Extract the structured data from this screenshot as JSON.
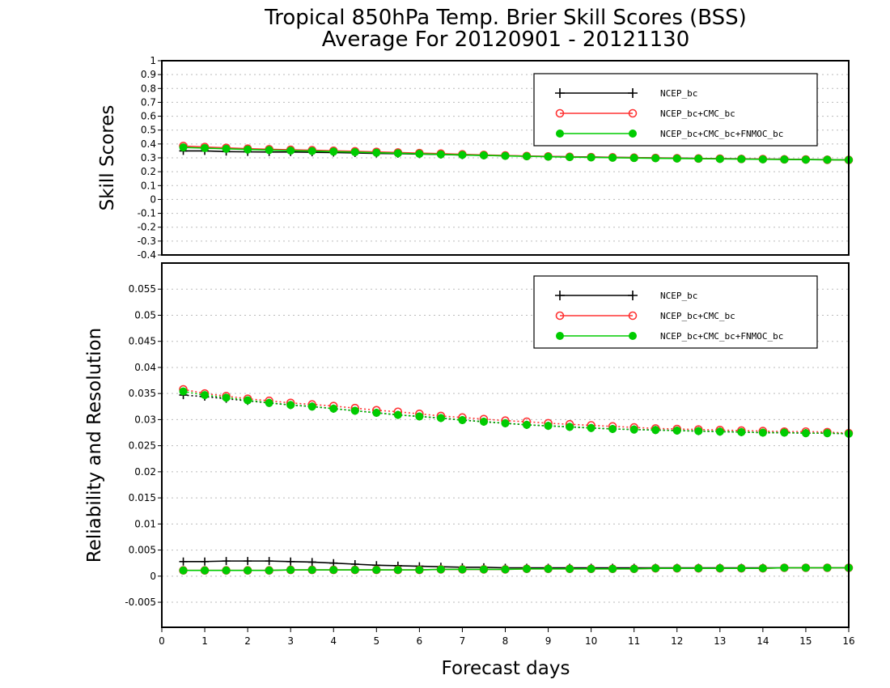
{
  "chart": {
    "title_line1": "Tropical 850hPa Temp. Brier Skill Scores (BSS)",
    "title_line2": "Average For 20120901 - 20121130",
    "xlabel": "Forecast days"
  },
  "chart_data": [
    {
      "type": "line",
      "panel": "top",
      "ylabel": "Skill Scores",
      "xlim": [
        0,
        16
      ],
      "ylim": [
        -0.4,
        1
      ],
      "yticks": [
        "1",
        "0.9",
        "0.8",
        "0.7",
        "0.6",
        "0.5",
        "0.4",
        "0.3",
        "0.2",
        "0.1",
        "0",
        "-0.1",
        "-0.2",
        "-0.3",
        "-0.4"
      ],
      "ytick_values": [
        1,
        0.9,
        0.8,
        0.7,
        0.6,
        0.5,
        0.4,
        0.3,
        0.2,
        0.1,
        0,
        -0.1,
        -0.2,
        -0.3,
        -0.4
      ],
      "grid": true,
      "legend_position": "top-right",
      "x": [
        0.5,
        1,
        1.5,
        2,
        2.5,
        3,
        3.5,
        4,
        4.5,
        5,
        5.5,
        6,
        6.5,
        7,
        7.5,
        8,
        8.5,
        9,
        9.5,
        10,
        10.5,
        11,
        11.5,
        12,
        12.5,
        13,
        13.5,
        14,
        14.5,
        15,
        15.5,
        16
      ],
      "series": [
        {
          "name": "NCEP_bc",
          "color": "#000000",
          "marker": "plus",
          "values": [
            0.35,
            0.35,
            0.345,
            0.343,
            0.342,
            0.342,
            0.34,
            0.338,
            0.335,
            0.332,
            0.33,
            0.327,
            0.324,
            0.32,
            0.318,
            0.315,
            0.312,
            0.31,
            0.308,
            0.306,
            0.304,
            0.302,
            0.3,
            0.298,
            0.296,
            0.294,
            0.293,
            0.291,
            0.29,
            0.288,
            0.287,
            0.285
          ]
        },
        {
          "name": "NCEP_bc+CMC_bc",
          "color": "#ff3333",
          "marker": "circle-open",
          "values": [
            0.385,
            0.378,
            0.372,
            0.366,
            0.362,
            0.358,
            0.355,
            0.351,
            0.347,
            0.343,
            0.338,
            0.334,
            0.33,
            0.325,
            0.321,
            0.317,
            0.313,
            0.31,
            0.307,
            0.305,
            0.303,
            0.301,
            0.299,
            0.297,
            0.295,
            0.294,
            0.292,
            0.291,
            0.289,
            0.288,
            0.286,
            0.285
          ]
        },
        {
          "name": "NCEP_bc+CMC_bc+FNMOC_bc",
          "color": "#00cc00",
          "marker": "circle-filled",
          "values": [
            0.375,
            0.37,
            0.365,
            0.36,
            0.356,
            0.352,
            0.349,
            0.345,
            0.341,
            0.337,
            0.333,
            0.329,
            0.325,
            0.321,
            0.318,
            0.314,
            0.311,
            0.308,
            0.305,
            0.303,
            0.301,
            0.299,
            0.297,
            0.295,
            0.294,
            0.292,
            0.291,
            0.289,
            0.288,
            0.287,
            0.286,
            0.285
          ]
        }
      ]
    },
    {
      "type": "line",
      "panel": "bottom",
      "ylabel": "Reliability and Resolution",
      "xlim": [
        0,
        16
      ],
      "ylim": [
        -0.0098,
        0.06
      ],
      "yticks": [
        "0.055",
        "0.05",
        "0.045",
        "0.04",
        "0.035",
        "0.03",
        "0.025",
        "0.02",
        "0.015",
        "0.01",
        "0.005",
        "0",
        "-0.005"
      ],
      "ytick_values": [
        0.055,
        0.05,
        0.045,
        0.04,
        0.035,
        0.03,
        0.025,
        0.02,
        0.015,
        0.01,
        0.005,
        0,
        -0.005
      ],
      "xticks": [
        "0",
        "1",
        "2",
        "3",
        "4",
        "5",
        "6",
        "7",
        "8",
        "9",
        "10",
        "11",
        "12",
        "13",
        "14",
        "15",
        "16"
      ],
      "grid": true,
      "legend_position": "top-right",
      "x": [
        0.5,
        1,
        1.5,
        2,
        2.5,
        3,
        3.5,
        4,
        4.5,
        5,
        5.5,
        6,
        6.5,
        7,
        7.5,
        8,
        8.5,
        9,
        9.5,
        10,
        10.5,
        11,
        11.5,
        12,
        12.5,
        13,
        13.5,
        14,
        14.5,
        15,
        15.5,
        16
      ],
      "series": [
        {
          "name": "NCEP_bc",
          "color": "#000000",
          "marker": "plus",
          "linestyle": "solid",
          "metric": "reliability",
          "values": [
            0.0028,
            0.0028,
            0.0029,
            0.0029,
            0.0029,
            0.0028,
            0.0027,
            0.0025,
            0.0023,
            0.0021,
            0.002,
            0.0019,
            0.0018,
            0.0017,
            0.0017,
            0.0016,
            0.0016,
            0.0016,
            0.0016,
            0.0016,
            0.0016,
            0.0016,
            0.0016,
            0.0016,
            0.0016,
            0.0016,
            0.0016,
            0.0016,
            0.0016,
            0.0016,
            0.0016,
            0.0016
          ]
        },
        {
          "name": "NCEP_bc+CMC_bc",
          "color": "#ff3333",
          "marker": "circle-open",
          "linestyle": "solid",
          "metric": "reliability",
          "values": [
            0.0011,
            0.0011,
            0.0011,
            0.0011,
            0.0011,
            0.0012,
            0.0012,
            0.0012,
            0.0012,
            0.0012,
            0.0012,
            0.0012,
            0.0013,
            0.0013,
            0.0013,
            0.0013,
            0.0014,
            0.0014,
            0.0014,
            0.0014,
            0.0014,
            0.0014,
            0.0015,
            0.0015,
            0.0015,
            0.0015,
            0.0015,
            0.0015,
            0.0016,
            0.0016,
            0.0016,
            0.0016
          ]
        },
        {
          "name": "NCEP_bc+CMC_bc+FNMOC_bc",
          "color": "#00cc00",
          "marker": "circle-filled",
          "linestyle": "solid",
          "metric": "reliability",
          "values": [
            0.0011,
            0.0011,
            0.0011,
            0.0011,
            0.0011,
            0.0012,
            0.0012,
            0.0012,
            0.0012,
            0.0012,
            0.0012,
            0.0012,
            0.0013,
            0.0013,
            0.0013,
            0.0013,
            0.0014,
            0.0014,
            0.0014,
            0.0014,
            0.0014,
            0.0014,
            0.0015,
            0.0015,
            0.0015,
            0.0015,
            0.0015,
            0.0015,
            0.0016,
            0.0016,
            0.0016,
            0.0016
          ]
        },
        {
          "name": "NCEP_bc",
          "color": "#000000",
          "marker": "plus",
          "linestyle": "dotted",
          "metric": "resolution",
          "values": [
            0.0347,
            0.0344,
            0.034,
            0.0336,
            0.0332,
            0.0328,
            0.0325,
            0.0321,
            0.0317,
            0.0313,
            0.0309,
            0.0306,
            0.0303,
            0.0299,
            0.0296,
            0.0293,
            0.029,
            0.0288,
            0.0286,
            0.0284,
            0.0282,
            0.0281,
            0.028,
            0.0279,
            0.0278,
            0.0277,
            0.0276,
            0.0275,
            0.0275,
            0.0274,
            0.0274,
            0.0273
          ]
        },
        {
          "name": "NCEP_bc+CMC_bc",
          "color": "#ff3333",
          "marker": "circle-open",
          "linestyle": "dotted",
          "metric": "resolution",
          "values": [
            0.0358,
            0.035,
            0.0345,
            0.034,
            0.0336,
            0.0332,
            0.0329,
            0.0326,
            0.0322,
            0.0318,
            0.0315,
            0.0311,
            0.0307,
            0.0304,
            0.0301,
            0.0298,
            0.0296,
            0.0293,
            0.0291,
            0.0289,
            0.0287,
            0.0285,
            0.0283,
            0.0282,
            0.0281,
            0.028,
            0.0279,
            0.0278,
            0.0277,
            0.0277,
            0.0276,
            0.0274
          ]
        },
        {
          "name": "NCEP_bc+CMC_bc+FNMOC_bc",
          "color": "#00cc00",
          "marker": "circle-filled",
          "linestyle": "dotted",
          "metric": "resolution",
          "values": [
            0.0354,
            0.0347,
            0.0342,
            0.0337,
            0.0332,
            0.0328,
            0.0325,
            0.0321,
            0.0317,
            0.0313,
            0.0309,
            0.0306,
            0.0303,
            0.0299,
            0.0296,
            0.0293,
            0.029,
            0.0288,
            0.0286,
            0.0284,
            0.0282,
            0.0281,
            0.028,
            0.0279,
            0.0278,
            0.0277,
            0.0276,
            0.0275,
            0.0275,
            0.0274,
            0.0274,
            0.0273
          ]
        }
      ]
    }
  ]
}
